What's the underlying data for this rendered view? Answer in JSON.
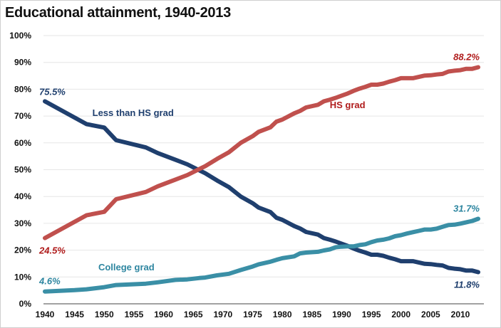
{
  "chart_data": {
    "type": "line",
    "title": "Educational attainment, 1940-2013",
    "xlabel": "",
    "ylabel": "",
    "xlim": [
      1940,
      2013
    ],
    "ylim": [
      0,
      100
    ],
    "xticks": [
      1940,
      1945,
      1950,
      1955,
      1960,
      1965,
      1970,
      1975,
      1980,
      1985,
      1990,
      1995,
      2000,
      2005,
      2010
    ],
    "yticks": [
      0,
      10,
      20,
      30,
      40,
      50,
      60,
      70,
      80,
      90,
      100
    ],
    "ytick_labels": [
      "0%",
      "10%",
      "20%",
      "30%",
      "40%",
      "50%",
      "60%",
      "70%",
      "80%",
      "90%",
      "100%"
    ],
    "grid": "horizontal",
    "legend": "none",
    "series": [
      {
        "name": "Less than HS grad",
        "color": "#1f3f6e",
        "label_color": "#1f3f6e",
        "points": [
          [
            1940,
            75.5
          ],
          [
            1947,
            67.0
          ],
          [
            1950,
            65.7
          ],
          [
            1952,
            61.0
          ],
          [
            1957,
            58.3
          ],
          [
            1959,
            56.2
          ],
          [
            1962,
            53.7
          ],
          [
            1964,
            52.0
          ],
          [
            1966,
            49.8
          ],
          [
            1967,
            48.7
          ],
          [
            1969,
            46.0
          ],
          [
            1971,
            43.5
          ],
          [
            1973,
            40.0
          ],
          [
            1975,
            37.5
          ],
          [
            1976,
            35.9
          ],
          [
            1978,
            34.2
          ],
          [
            1979,
            32.1
          ],
          [
            1980,
            31.3
          ],
          [
            1982,
            29.0
          ],
          [
            1983,
            28.1
          ],
          [
            1984,
            26.8
          ],
          [
            1986,
            25.8
          ],
          [
            1987,
            24.5
          ],
          [
            1988,
            23.9
          ],
          [
            1989,
            23.2
          ],
          [
            1990,
            22.4
          ],
          [
            1991,
            21.6
          ],
          [
            1992,
            20.6
          ],
          [
            1993,
            19.8
          ],
          [
            1994,
            19.1
          ],
          [
            1995,
            18.3
          ],
          [
            1996,
            18.3
          ],
          [
            1997,
            17.9
          ],
          [
            1998,
            17.2
          ],
          [
            1999,
            16.6
          ],
          [
            2000,
            15.9
          ],
          [
            2001,
            15.9
          ],
          [
            2002,
            15.9
          ],
          [
            2003,
            15.4
          ],
          [
            2004,
            14.9
          ],
          [
            2005,
            14.8
          ],
          [
            2006,
            14.5
          ],
          [
            2007,
            14.3
          ],
          [
            2008,
            13.4
          ],
          [
            2009,
            13.1
          ],
          [
            2010,
            12.9
          ],
          [
            2011,
            12.4
          ],
          [
            2012,
            12.4
          ],
          [
            2013,
            11.8
          ]
        ],
        "label_text": "Less than HS grad",
        "label_at": [
          1948,
          70
        ],
        "start_label": "75.5%",
        "end_label": "11.8%"
      },
      {
        "name": "HS grad",
        "color": "#c0504d",
        "label_color": "#b01c1c",
        "points": [
          [
            1940,
            24.5
          ],
          [
            1947,
            33.0
          ],
          [
            1950,
            34.3
          ],
          [
            1952,
            39.0
          ],
          [
            1957,
            41.7
          ],
          [
            1959,
            43.8
          ],
          [
            1962,
            46.3
          ],
          [
            1964,
            48.0
          ],
          [
            1966,
            50.2
          ],
          [
            1967,
            51.3
          ],
          [
            1969,
            54.0
          ],
          [
            1971,
            56.5
          ],
          [
            1973,
            60.0
          ],
          [
            1975,
            62.5
          ],
          [
            1976,
            64.1
          ],
          [
            1978,
            65.8
          ],
          [
            1979,
            67.9
          ],
          [
            1980,
            68.7
          ],
          [
            1982,
            71.0
          ],
          [
            1983,
            71.9
          ],
          [
            1984,
            73.2
          ],
          [
            1986,
            74.2
          ],
          [
            1987,
            75.5
          ],
          [
            1988,
            76.1
          ],
          [
            1989,
            76.8
          ],
          [
            1990,
            77.6
          ],
          [
            1991,
            78.4
          ],
          [
            1992,
            79.4
          ],
          [
            1993,
            80.2
          ],
          [
            1994,
            80.9
          ],
          [
            1995,
            81.7
          ],
          [
            1996,
            81.7
          ],
          [
            1997,
            82.1
          ],
          [
            1998,
            82.8
          ],
          [
            1999,
            83.4
          ],
          [
            2000,
            84.1
          ],
          [
            2001,
            84.1
          ],
          [
            2002,
            84.1
          ],
          [
            2003,
            84.6
          ],
          [
            2004,
            85.1
          ],
          [
            2005,
            85.2
          ],
          [
            2006,
            85.5
          ],
          [
            2007,
            85.7
          ],
          [
            2008,
            86.6
          ],
          [
            2009,
            86.9
          ],
          [
            2010,
            87.1
          ],
          [
            2011,
            87.6
          ],
          [
            2012,
            87.6
          ],
          [
            2013,
            88.2
          ]
        ],
        "label_text": "HS grad",
        "label_at": [
          1988,
          73
        ],
        "start_label": "24.5%",
        "end_label": "88.2%"
      },
      {
        "name": "College grad",
        "color": "#3a8fa6",
        "label_color": "#2e86a0",
        "points": [
          [
            1940,
            4.6
          ],
          [
            1945,
            5.1
          ],
          [
            1947,
            5.4
          ],
          [
            1950,
            6.2
          ],
          [
            1952,
            7.0
          ],
          [
            1957,
            7.5
          ],
          [
            1959,
            8.0
          ],
          [
            1962,
            8.9
          ],
          [
            1964,
            9.1
          ],
          [
            1966,
            9.6
          ],
          [
            1967,
            9.8
          ],
          [
            1969,
            10.6
          ],
          [
            1971,
            11.2
          ],
          [
            1973,
            12.6
          ],
          [
            1975,
            13.9
          ],
          [
            1976,
            14.7
          ],
          [
            1978,
            15.7
          ],
          [
            1979,
            16.4
          ],
          [
            1980,
            17.0
          ],
          [
            1982,
            17.7
          ],
          [
            1983,
            18.8
          ],
          [
            1984,
            19.1
          ],
          [
            1986,
            19.4
          ],
          [
            1987,
            19.9
          ],
          [
            1988,
            20.3
          ],
          [
            1989,
            21.1
          ],
          [
            1990,
            21.3
          ],
          [
            1991,
            21.4
          ],
          [
            1992,
            21.4
          ],
          [
            1993,
            21.9
          ],
          [
            1994,
            22.2
          ],
          [
            1995,
            23.0
          ],
          [
            1996,
            23.6
          ],
          [
            1997,
            23.9
          ],
          [
            1998,
            24.4
          ],
          [
            1999,
            25.2
          ],
          [
            2000,
            25.6
          ],
          [
            2001,
            26.2
          ],
          [
            2002,
            26.7
          ],
          [
            2003,
            27.2
          ],
          [
            2004,
            27.7
          ],
          [
            2005,
            27.7
          ],
          [
            2006,
            28.0
          ],
          [
            2007,
            28.7
          ],
          [
            2008,
            29.4
          ],
          [
            2009,
            29.5
          ],
          [
            2010,
            29.9
          ],
          [
            2011,
            30.4
          ],
          [
            2012,
            30.9
          ],
          [
            2013,
            31.7
          ]
        ],
        "label_text": "College grad",
        "label_at": [
          1949,
          12.5
        ],
        "start_label": "4.6%",
        "end_label": "31.7%"
      }
    ]
  }
}
